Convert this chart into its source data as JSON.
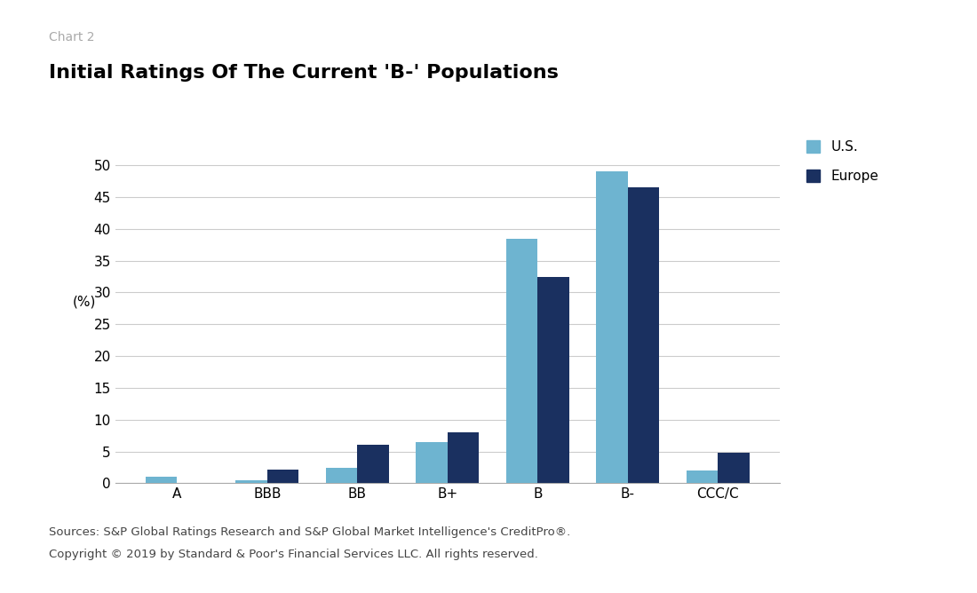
{
  "categories": [
    "A",
    "BBB",
    "BB",
    "B+",
    "B",
    "B-",
    "CCC/C"
  ],
  "us_values": [
    1.0,
    0.5,
    2.5,
    6.5,
    38.5,
    49.0,
    2.0
  ],
  "europe_values": [
    0.1,
    2.2,
    6.0,
    8.0,
    32.5,
    46.5,
    4.8
  ],
  "us_color": "#6eb4d0",
  "europe_color": "#1a3060",
  "title": "Initial Ratings Of The Current 'B-' Populations",
  "chart_label": "Chart 2",
  "ylabel": "(%)",
  "ylim": [
    0,
    55
  ],
  "yticks": [
    0,
    5,
    10,
    15,
    20,
    25,
    30,
    35,
    40,
    45,
    50
  ],
  "legend_us": "U.S.",
  "legend_europe": "Europe",
  "footnote_line1": "Sources: S&P Global Ratings Research and S&P Global Market Intelligence's CreditPro®.",
  "footnote_line2": "Copyright © 2019 by Standard & Poor's Financial Services LLC. All rights reserved.",
  "background_color": "#ffffff",
  "grid_color": "#cccccc",
  "bar_width": 0.35,
  "title_fontsize": 16,
  "chart_label_fontsize": 10,
  "axis_fontsize": 11,
  "legend_fontsize": 11,
  "footnote_fontsize": 9.5
}
